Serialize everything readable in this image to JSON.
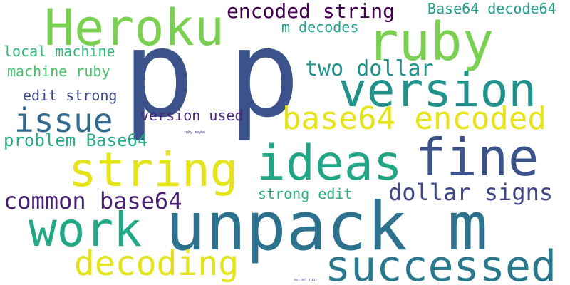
{
  "words": {
    "p1": {
      "text": "p",
      "color": "#3b528b"
    },
    "p2": {
      "text": "p",
      "color": "#3b528b"
    },
    "unpack_m": {
      "text": "unpack m",
      "color": "#2c728e"
    },
    "heroku": {
      "text": "Heroku",
      "color": "#7ad151"
    },
    "ruby": {
      "text": "ruby",
      "color": "#7ad151"
    },
    "version": {
      "text": "version",
      "color": "#21918c"
    },
    "fine": {
      "text": "fine",
      "color": "#3b528b"
    },
    "ideas": {
      "text": "ideas",
      "color": "#21a685"
    },
    "string": {
      "text": "string",
      "color": "#e5e419"
    },
    "work": {
      "text": "work",
      "color": "#22a884"
    },
    "successed": {
      "text": "successed",
      "color": "#2a788e"
    },
    "decoding": {
      "text": "decoding",
      "color": "#e5e419"
    },
    "base64_encoded": {
      "text": "base64 encoded",
      "color": "#e5e419"
    },
    "issue": {
      "text": "issue",
      "color": "#31688e"
    },
    "encoded_string": {
      "text": "encoded string",
      "color": "#440154"
    },
    "base64_decode64": {
      "text": "Base64 decode64",
      "color": "#1f9e89"
    },
    "m_decodes": {
      "text": "m decodes",
      "color": "#1f9e89"
    },
    "two_dollar": {
      "text": "two dollar",
      "color": "#21918c"
    },
    "local_machine": {
      "text": "local machine",
      "color": "#35b779"
    },
    "machine_ruby": {
      "text": "machine ruby",
      "color": "#4ac16d"
    },
    "edit_strong": {
      "text": "edit strong",
      "color": "#3e4989"
    },
    "version_used": {
      "text": "version used",
      "color": "#482878"
    },
    "problem_base64": {
      "text": "problem Base64",
      "color": "#25ac82"
    },
    "common_base64": {
      "text": "common base64",
      "color": "#482173"
    },
    "strong_edit": {
      "text": "strong edit",
      "color": "#29af7f"
    },
    "dollar_signs": {
      "text": "dollar signs",
      "color": "#3f4788"
    },
    "ruby_maybe": {
      "text": "ruby maybe",
      "color": "#414487"
    },
    "server_ruby": {
      "text": "server ruby",
      "color": "#404688"
    }
  }
}
